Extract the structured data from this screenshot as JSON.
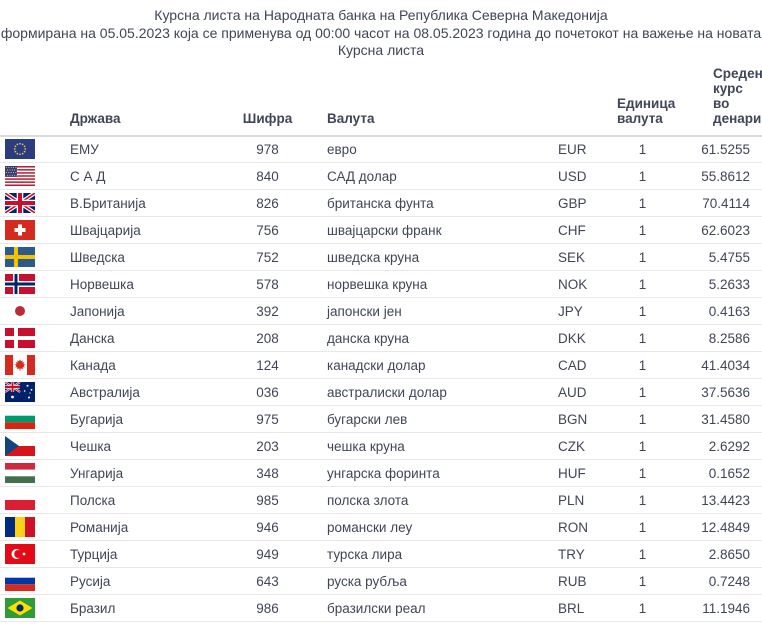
{
  "header": {
    "title_lines": [
      "Курсна листа на Народната банка на Република Северна Македонија",
      "формирана на 05.05.2023 која се применува од 00:00 часот на 08.05.2023 година до почетокот на важење на новата",
      "Курсна листа"
    ]
  },
  "table": {
    "columns": {
      "country": "Држава",
      "code": "Шифра",
      "currency": "Валута",
      "unit": "Единица валута",
      "rate": "Среден курс во денари"
    },
    "rows": [
      {
        "flag": "eu",
        "country": "ЕМУ",
        "code": "978",
        "currency": "евро",
        "ccy": "EUR",
        "unit": "1",
        "rate": "61.5255"
      },
      {
        "flag": "us",
        "country": "С А Д",
        "code": "840",
        "currency": "САД долар",
        "ccy": "USD",
        "unit": "1",
        "rate": "55.8612"
      },
      {
        "flag": "gb",
        "country": "В.Британија",
        "code": "826",
        "currency": "британска фунта",
        "ccy": "GBP",
        "unit": "1",
        "rate": "70.4114"
      },
      {
        "flag": "ch",
        "country": "Швајцарија",
        "code": "756",
        "currency": "швајцарски франк",
        "ccy": "CHF",
        "unit": "1",
        "rate": "62.6023"
      },
      {
        "flag": "se",
        "country": "Шведска",
        "code": "752",
        "currency": "шведска круна",
        "ccy": "SEK",
        "unit": "1",
        "rate": "5.4755"
      },
      {
        "flag": "no",
        "country": "Норвешка",
        "code": "578",
        "currency": "норвешка круна",
        "ccy": "NOK",
        "unit": "1",
        "rate": "5.2633"
      },
      {
        "flag": "jp",
        "country": "Јапонија",
        "code": "392",
        "currency": "јапонски јен",
        "ccy": "JPY",
        "unit": "1",
        "rate": "0.4163"
      },
      {
        "flag": "dk",
        "country": "Данска",
        "code": "208",
        "currency": "данска круна",
        "ccy": "DKK",
        "unit": "1",
        "rate": "8.2586"
      },
      {
        "flag": "ca",
        "country": "Канада",
        "code": "124",
        "currency": "канадски долар",
        "ccy": "CAD",
        "unit": "1",
        "rate": "41.4034"
      },
      {
        "flag": "au",
        "country": "Австралија",
        "code": "036",
        "currency": "австралиски долар",
        "ccy": "AUD",
        "unit": "1",
        "rate": "37.5636"
      },
      {
        "flag": "bg",
        "country": "Бугарија",
        "code": "975",
        "currency": "бугарски лев",
        "ccy": "BGN",
        "unit": "1",
        "rate": "31.4580"
      },
      {
        "flag": "cz",
        "country": "Чешка",
        "code": "203",
        "currency": "чешка круна",
        "ccy": "CZK",
        "unit": "1",
        "rate": "2.6292"
      },
      {
        "flag": "hu",
        "country": "Унгарија",
        "code": "348",
        "currency": "унгарска форинта",
        "ccy": "HUF",
        "unit": "1",
        "rate": "0.1652"
      },
      {
        "flag": "pl",
        "country": "Полска",
        "code": "985",
        "currency": "полска злота",
        "ccy": "PLN",
        "unit": "1",
        "rate": "13.4423"
      },
      {
        "flag": "ro",
        "country": "Романија",
        "code": "946",
        "currency": "романски леу",
        "ccy": "RON",
        "unit": "1",
        "rate": "12.4849"
      },
      {
        "flag": "tr",
        "country": "Турција",
        "code": "949",
        "currency": "турска лира",
        "ccy": "TRY",
        "unit": "1",
        "rate": "2.8650"
      },
      {
        "flag": "ru",
        "country": "Русија",
        "code": "643",
        "currency": "руска рубља",
        "ccy": "RUB",
        "unit": "1",
        "rate": "0.7248"
      },
      {
        "flag": "br",
        "country": "Бразил",
        "code": "986",
        "currency": "бразилски реал",
        "ccy": "BRL",
        "unit": "1",
        "rate": "11.1946"
      }
    ]
  },
  "colors": {
    "text": "#3f4656",
    "row_border": "#e8e8e8",
    "header_border": "#dcdcdc"
  }
}
